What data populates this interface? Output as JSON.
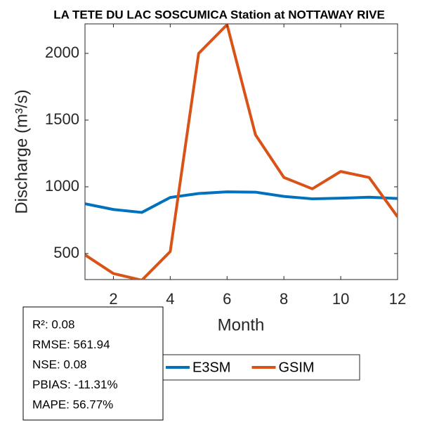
{
  "chart_data": {
    "type": "line",
    "title": "LA TETE DU LAC SOSCUMICA  Station at  NOTTAWAY RIVE",
    "xlabel": "Month",
    "ylabel": "Discharge (m³/s)",
    "x": [
      1,
      2,
      3,
      4,
      5,
      6,
      7,
      8,
      9,
      10,
      11,
      12
    ],
    "series": [
      {
        "name": "E3SM",
        "color": "#0072BD",
        "values": [
          873,
          830,
          808,
          920,
          950,
          962,
          960,
          928,
          910,
          915,
          922,
          912
        ]
      },
      {
        "name": "GSIM",
        "color": "#D95319",
        "values": [
          490,
          350,
          300,
          515,
          2000,
          2215,
          1390,
          1070,
          985,
          1115,
          1070,
          775
        ]
      }
    ],
    "xlim": [
      1,
      12
    ],
    "xticks": [
      2,
      4,
      6,
      8,
      10,
      12
    ],
    "ylim": [
      305,
      2221
    ],
    "yticks": [
      500,
      1000,
      1500,
      2000
    ],
    "annotations": [
      "R²: 0.08",
      "RMSE: 561.94",
      "NSE: 0.08",
      "PBIAS: -11.31%",
      "MAPE: 56.77%"
    ]
  }
}
